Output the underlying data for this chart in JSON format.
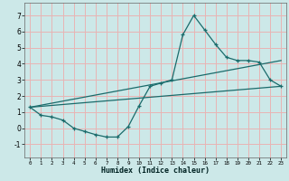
{
  "xlabel": "Humidex (Indice chaleur)",
  "xlim": [
    -0.5,
    23.5
  ],
  "ylim": [
    -1.8,
    7.8
  ],
  "xticks": [
    0,
    1,
    2,
    3,
    4,
    5,
    6,
    7,
    8,
    9,
    10,
    11,
    12,
    13,
    14,
    15,
    16,
    17,
    18,
    19,
    20,
    21,
    22,
    23
  ],
  "yticks": [
    -1,
    0,
    1,
    2,
    3,
    4,
    5,
    6,
    7
  ],
  "bg_color": "#cce8e8",
  "grid_color": "#e8b4b4",
  "line_color": "#1a6b6b",
  "line1_x": [
    0,
    1,
    2,
    3,
    4,
    5,
    6,
    7,
    8,
    9,
    10,
    11,
    12,
    13,
    14,
    15,
    16,
    17,
    18,
    19,
    20,
    21,
    22,
    23
  ],
  "line1_y": [
    1.3,
    0.8,
    0.7,
    0.5,
    0.0,
    -0.2,
    -0.4,
    -0.55,
    -0.55,
    0.1,
    1.4,
    2.6,
    2.8,
    3.0,
    5.8,
    7.0,
    6.1,
    5.2,
    4.4,
    4.2,
    4.2,
    4.1,
    3.0,
    2.6
  ],
  "line2_x": [
    0,
    23
  ],
  "line2_y": [
    1.3,
    4.2
  ],
  "line3_x": [
    0,
    23
  ],
  "line3_y": [
    1.3,
    2.6
  ]
}
